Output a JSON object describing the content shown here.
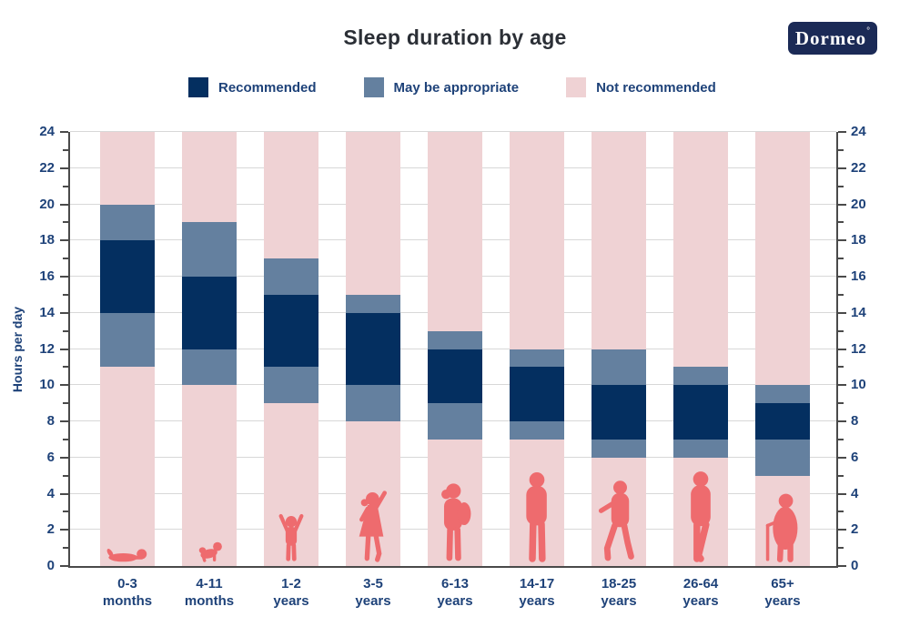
{
  "title": "Sleep duration by age",
  "brand": {
    "logo_text": "Dormeo",
    "mark": "°"
  },
  "legend": {
    "position": "top",
    "items": [
      {
        "label": "Recommended",
        "color_key": "recommended"
      },
      {
        "label": "May be appropriate",
        "color_key": "may_be_appropriate"
      },
      {
        "label": "Not recommended",
        "color_key": "not_recommended"
      }
    ]
  },
  "colors": {
    "recommended": "#042f60",
    "may_be_appropriate": "#64809f",
    "not_recommended": "#efd2d4",
    "icon": "#ee6b6e",
    "axis_text": "#1e4279",
    "title_text": "#2b2f36",
    "logo_bg": "#1b2a56",
    "logo_text": "#ffffff",
    "grid": "#d8d8d8",
    "axis_line": "#4a4a4a"
  },
  "chart_data": {
    "type": "stacked-bar",
    "title": "Sleep duration by age",
    "xlabel": "",
    "ylabel": "Hours per day",
    "ylim": [
      0,
      24
    ],
    "ytick_step": 2,
    "yticks": [
      0,
      2,
      4,
      6,
      8,
      10,
      12,
      14,
      16,
      18,
      20,
      22,
      24
    ],
    "grid": true,
    "dual_y_axis": true,
    "categories": [
      "0-3 months",
      "4-11 months",
      "1-2 years",
      "3-5 years",
      "6-13 years",
      "14-17 years",
      "18-25 years",
      "26-64 years",
      "65+ years"
    ],
    "units": "hours per day",
    "bars": [
      {
        "category": "0-3 months",
        "label_line1": "0-3",
        "label_line2": "months",
        "icon": "baby-lying-icon",
        "segments": [
          {
            "from": 0,
            "to": 11,
            "type": "not_recommended"
          },
          {
            "from": 11,
            "to": 14,
            "type": "may_be_appropriate"
          },
          {
            "from": 14,
            "to": 18,
            "type": "recommended"
          },
          {
            "from": 18,
            "to": 20,
            "type": "may_be_appropriate"
          },
          {
            "from": 20,
            "to": 24,
            "type": "not_recommended"
          }
        ]
      },
      {
        "category": "4-11 months",
        "label_line1": "4-11",
        "label_line2": "months",
        "icon": "baby-crawling-icon",
        "segments": [
          {
            "from": 0,
            "to": 10,
            "type": "not_recommended"
          },
          {
            "from": 10,
            "to": 12,
            "type": "may_be_appropriate"
          },
          {
            "from": 12,
            "to": 16,
            "type": "recommended"
          },
          {
            "from": 16,
            "to": 19,
            "type": "may_be_appropriate"
          },
          {
            "from": 19,
            "to": 24,
            "type": "not_recommended"
          }
        ]
      },
      {
        "category": "1-2 years",
        "label_line1": "1-2",
        "label_line2": "years",
        "icon": "toddler-icon",
        "segments": [
          {
            "from": 0,
            "to": 9,
            "type": "not_recommended"
          },
          {
            "from": 9,
            "to": 11,
            "type": "may_be_appropriate"
          },
          {
            "from": 11,
            "to": 15,
            "type": "recommended"
          },
          {
            "from": 15,
            "to": 17,
            "type": "may_be_appropriate"
          },
          {
            "from": 17,
            "to": 24,
            "type": "not_recommended"
          }
        ]
      },
      {
        "category": "3-5 years",
        "label_line1": "3-5",
        "label_line2": "years",
        "icon": "preschooler-icon",
        "segments": [
          {
            "from": 0,
            "to": 8,
            "type": "not_recommended"
          },
          {
            "from": 8,
            "to": 10,
            "type": "may_be_appropriate"
          },
          {
            "from": 10,
            "to": 14,
            "type": "recommended"
          },
          {
            "from": 14,
            "to": 15,
            "type": "may_be_appropriate"
          },
          {
            "from": 15,
            "to": 24,
            "type": "not_recommended"
          }
        ]
      },
      {
        "category": "6-13 years",
        "label_line1": "6-13",
        "label_line2": "years",
        "icon": "child-backpack-icon",
        "segments": [
          {
            "from": 0,
            "to": 7,
            "type": "not_recommended"
          },
          {
            "from": 7,
            "to": 9,
            "type": "may_be_appropriate"
          },
          {
            "from": 9,
            "to": 12,
            "type": "recommended"
          },
          {
            "from": 12,
            "to": 13,
            "type": "may_be_appropriate"
          },
          {
            "from": 13,
            "to": 24,
            "type": "not_recommended"
          }
        ]
      },
      {
        "category": "14-17 years",
        "label_line1": "14-17",
        "label_line2": "years",
        "icon": "teen-icon",
        "segments": [
          {
            "from": 0,
            "to": 7,
            "type": "not_recommended"
          },
          {
            "from": 7,
            "to": 8,
            "type": "may_be_appropriate"
          },
          {
            "from": 8,
            "to": 11,
            "type": "recommended"
          },
          {
            "from": 11,
            "to": 12,
            "type": "may_be_appropriate"
          },
          {
            "from": 12,
            "to": 24,
            "type": "not_recommended"
          }
        ]
      },
      {
        "category": "18-25 years",
        "label_line1": "18-25",
        "label_line2": "years",
        "icon": "young-adult-icon",
        "segments": [
          {
            "from": 0,
            "to": 6,
            "type": "not_recommended"
          },
          {
            "from": 6,
            "to": 7,
            "type": "may_be_appropriate"
          },
          {
            "from": 7,
            "to": 10,
            "type": "recommended"
          },
          {
            "from": 10,
            "to": 12,
            "type": "may_be_appropriate"
          },
          {
            "from": 12,
            "to": 24,
            "type": "not_recommended"
          }
        ]
      },
      {
        "category": "26-64 years",
        "label_line1": "26-64",
        "label_line2": "years",
        "icon": "adult-icon",
        "segments": [
          {
            "from": 0,
            "to": 6,
            "type": "not_recommended"
          },
          {
            "from": 6,
            "to": 7,
            "type": "may_be_appropriate"
          },
          {
            "from": 7,
            "to": 10,
            "type": "recommended"
          },
          {
            "from": 10,
            "to": 11,
            "type": "may_be_appropriate"
          },
          {
            "from": 11,
            "to": 24,
            "type": "not_recommended"
          }
        ]
      },
      {
        "category": "65+ years",
        "label_line1": "65+",
        "label_line2": "years",
        "icon": "senior-cane-icon",
        "segments": [
          {
            "from": 0,
            "to": 5,
            "type": "not_recommended"
          },
          {
            "from": 5,
            "to": 7,
            "type": "may_be_appropriate"
          },
          {
            "from": 7,
            "to": 9,
            "type": "recommended"
          },
          {
            "from": 9,
            "to": 10,
            "type": "may_be_appropriate"
          },
          {
            "from": 10,
            "to": 24,
            "type": "not_recommended"
          }
        ]
      }
    ]
  }
}
